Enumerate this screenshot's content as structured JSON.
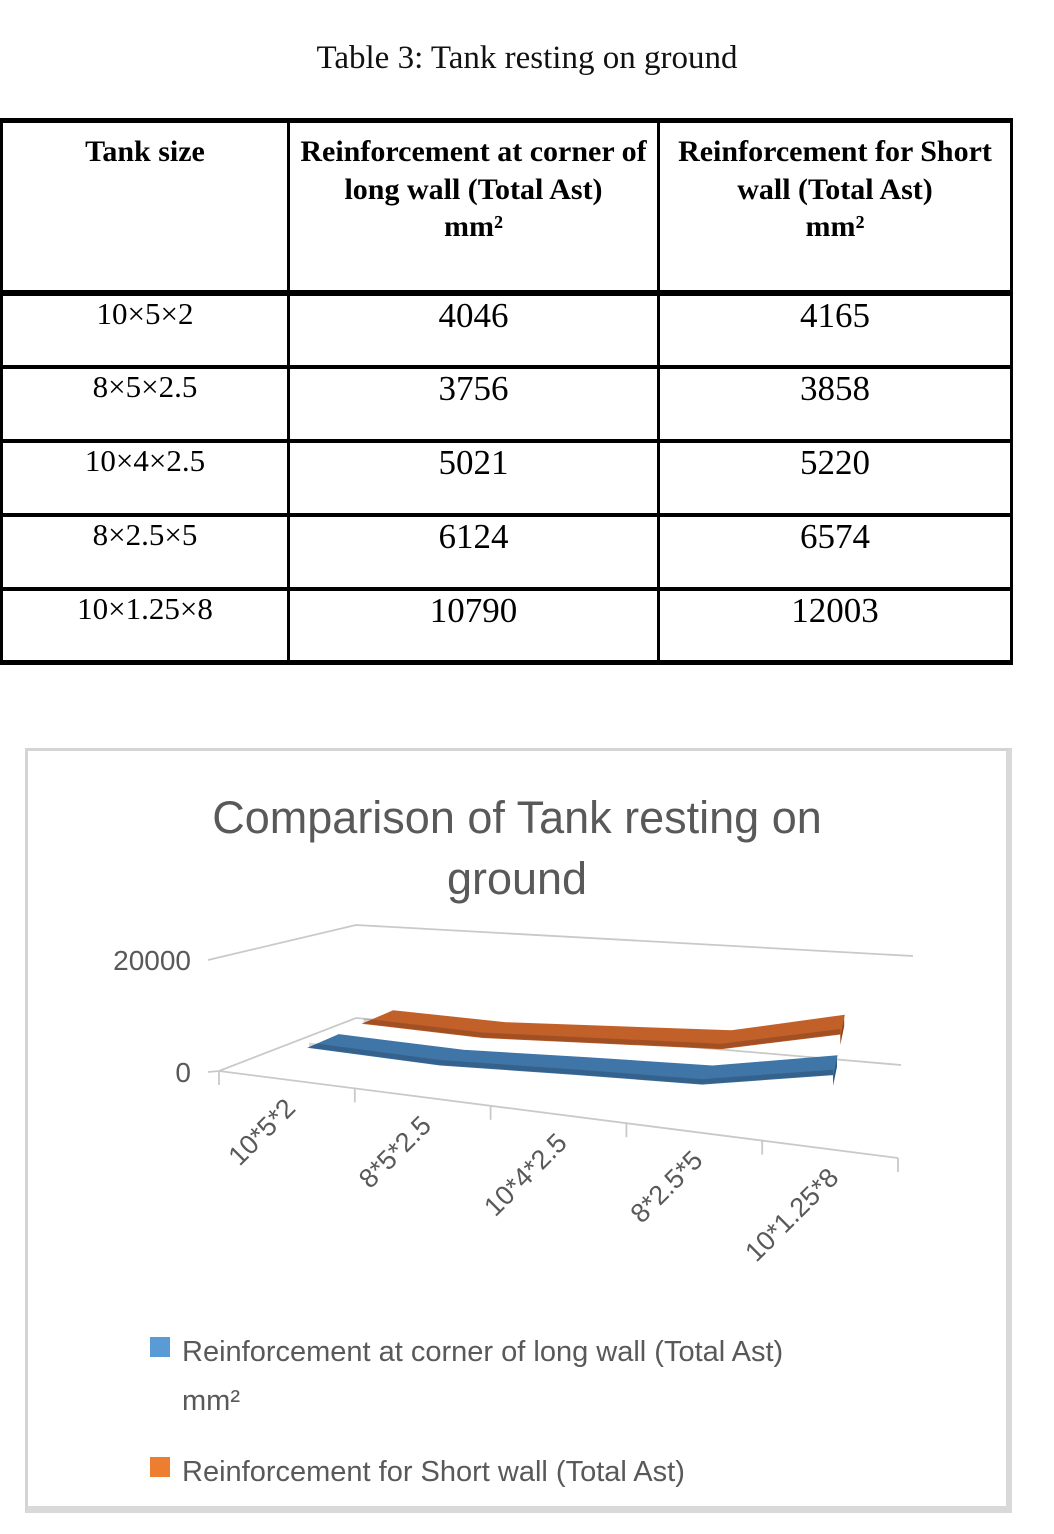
{
  "table": {
    "caption": "Table 3: Tank resting on ground",
    "headers": [
      {
        "text": "Tank size",
        "unit": ""
      },
      {
        "text": "Reinforcement at corner of long wall (Total Ast)",
        "unit": "mm²"
      },
      {
        "text": "Reinforcement for Short wall (Total Ast)",
        "unit": "mm²"
      }
    ],
    "rows": [
      {
        "size": "10×5×2",
        "long": "4046",
        "short": "4165"
      },
      {
        "size": "8×5×2.5",
        "long": "3756",
        "short": "3858"
      },
      {
        "size": "10×4×2.5",
        "long": "5021",
        "short": "5220"
      },
      {
        "size": "8×2.5×5",
        "long": "6124",
        "short": "6574"
      },
      {
        "size": "10×1.25×8",
        "long": "10790",
        "short": "12003"
      }
    ]
  },
  "chart": {
    "title": "Comparison of Tank resting on ground",
    "legend": [
      {
        "label": "Reinforcement at corner of long wall (Total Ast)",
        "unit": "mm²",
        "swatch": "#5B9BD5"
      },
      {
        "label": "Reinforcement for Short wall (Total Ast)",
        "unit": "mm²",
        "swatch": "#ED7D31"
      }
    ],
    "colors": {
      "grid": "#c9c9c9",
      "axis_text": "#595959",
      "frame_border": "#d4d4d4"
    }
  },
  "chart_data": {
    "type": "line",
    "style": "3d-ribbon",
    "title": "Comparison of Tank resting on ground",
    "categories": [
      "10*5*2",
      "8*5*2.5",
      "10*4*2.5",
      "8*2.5*5",
      "10*1.25*8"
    ],
    "series": [
      {
        "name": "Reinforcement at corner of long wall (Total Ast) mm²",
        "values": [
          4046,
          3756,
          5021,
          6124,
          10790
        ],
        "color": "#4075A8",
        "dark": "#2C567E"
      },
      {
        "name": "Reinforcement for Short wall (Total Ast) mm²",
        "values": [
          4165,
          3858,
          5220,
          6574,
          12003
        ],
        "color": "#C2602A",
        "dark": "#90461A"
      }
    ],
    "ylim": [
      0,
      20000
    ],
    "y_ticks": [
      {
        "label": "20000",
        "value": 20000
      },
      {
        "label": "0",
        "value": 0
      }
    ],
    "grid": true,
    "legend_position": "bottom"
  }
}
